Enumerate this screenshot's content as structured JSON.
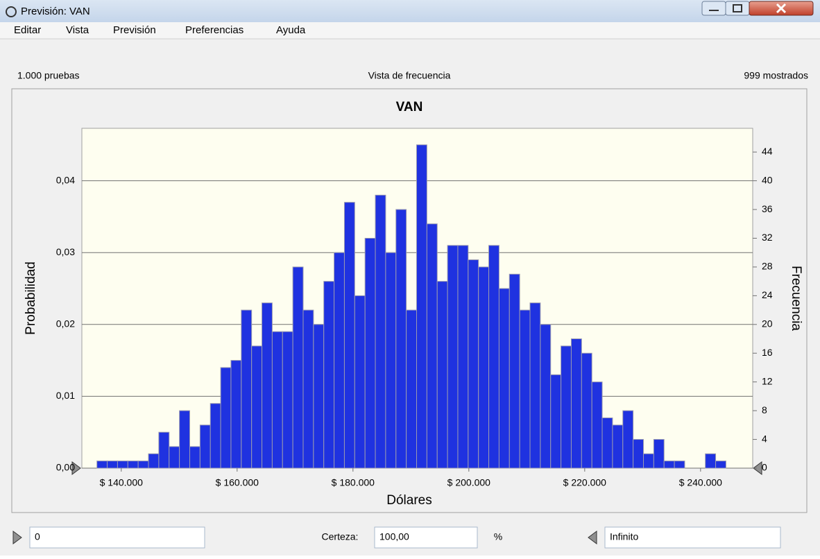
{
  "window": {
    "title": "Previsión: VAN",
    "menu": [
      "Editar",
      "Vista",
      "Previsión",
      "Preferencias",
      "Ayuda"
    ],
    "trials": "1.000 pruebas",
    "view": "Vista de frecuencia",
    "shown": "999 mostrados",
    "lower": "0",
    "certainty_label": "Certeza:",
    "certainty": "100,00",
    "percent": "%",
    "upper": "Infinito"
  },
  "chart_data": {
    "type": "histogram",
    "title": "VAN",
    "xlabel": "Dólares",
    "ylabel": "Probabilidad",
    "y2label": "Frecuencia",
    "bins": [
      135800,
      137580,
      139360,
      141140,
      142920,
      144700,
      146480,
      148260,
      150040,
      151820,
      153600,
      155380,
      157160,
      158940,
      160720,
      162500,
      164280,
      166060,
      167840,
      169620,
      171400,
      173180,
      174960,
      176740,
      178520,
      180300,
      182080,
      183860,
      185640,
      187420,
      189200,
      190980,
      192760,
      194540,
      196320,
      198100,
      199880,
      201660,
      203440,
      205220,
      207000,
      208780,
      210560,
      212340,
      214120,
      215900,
      217680,
      219460,
      221240,
      223020,
      224800,
      226580,
      228360,
      230140,
      231920,
      233700,
      235480,
      237260,
      239040,
      240820,
      242600,
      244380
    ],
    "values": [
      1,
      1,
      1,
      1,
      1,
      2,
      5,
      3,
      8,
      3,
      6,
      9,
      14,
      15,
      22,
      17,
      23,
      19,
      19,
      28,
      22,
      20,
      26,
      30,
      37,
      24,
      32,
      38,
      30,
      36,
      22,
      45,
      34,
      26,
      31,
      31,
      29,
      28,
      31,
      25,
      27,
      22,
      23,
      20,
      13,
      17,
      18,
      16,
      12,
      7,
      6,
      8,
      4,
      2,
      4,
      1,
      1,
      0,
      0,
      2,
      1
    ],
    "axis": "y2",
    "color": "#1f32e0",
    "xlim": [
      133200,
      249000
    ],
    "xticks": [
      {
        "value": 140000,
        "label": "$ 140.000"
      },
      {
        "value": 160000,
        "label": "$ 160.000"
      },
      {
        "value": 180000,
        "label": "$ 180.000"
      },
      {
        "value": 200000,
        "label": "$ 200.000"
      },
      {
        "value": 220000,
        "label": "$ 220.000"
      },
      {
        "value": 240000,
        "label": "$ 240.000"
      }
    ],
    "ylim": [
      0,
      0.0473
    ],
    "yticks": [
      {
        "value": 0,
        "label": "0,00"
      },
      {
        "value": 0.01,
        "label": "0,01"
      },
      {
        "value": 0.02,
        "label": "0,02"
      },
      {
        "value": 0.03,
        "label": "0,03"
      },
      {
        "value": 0.04,
        "label": "0,04"
      }
    ],
    "y2lim": [
      0,
      47.3
    ],
    "y2ticks": [
      0,
      4,
      8,
      12,
      16,
      20,
      24,
      28,
      32,
      36,
      40,
      44
    ],
    "grid": true
  }
}
